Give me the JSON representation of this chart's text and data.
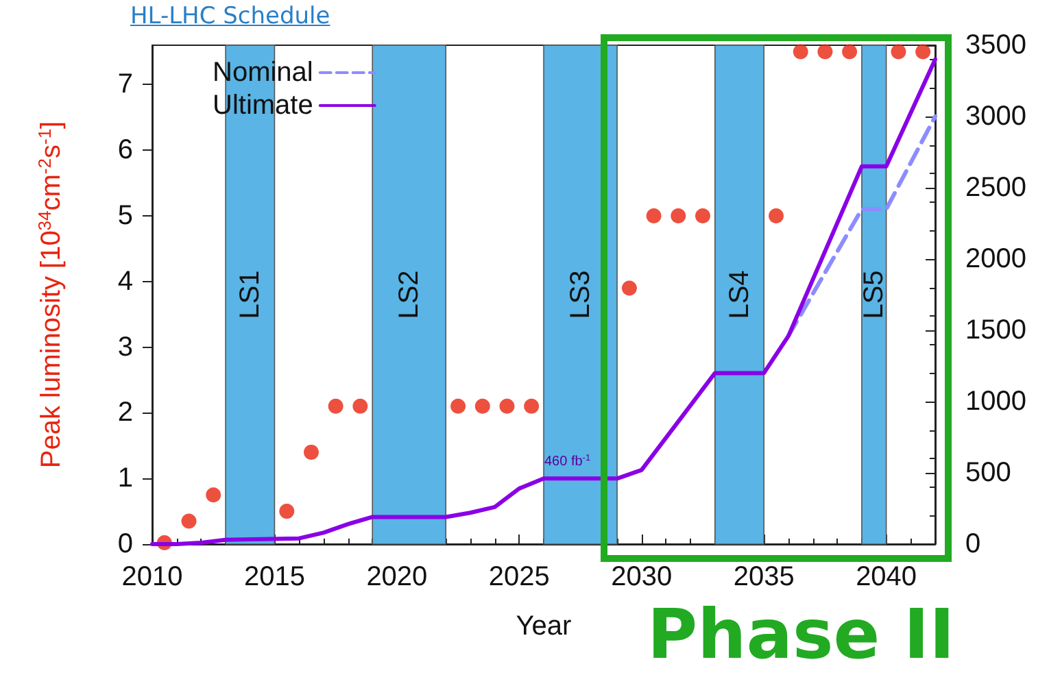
{
  "chart_data": {
    "type": "line",
    "title": "HL-LHC Schedule",
    "xlabel": "Year",
    "ylabel": "Peak luminosity [10$^{34}$cm$^{-2}$s$^{-1}$]",
    "xlim": [
      2010,
      2042
    ],
    "xticks": [
      2010,
      2015,
      2020,
      2025,
      2030,
      2035,
      2040
    ],
    "ylim": [
      0,
      7.6
    ],
    "yticks": [
      0,
      1,
      2,
      3,
      4,
      5,
      6,
      7
    ],
    "y2lim": [
      0,
      3500
    ],
    "y2ticks": [
      0,
      500,
      1000,
      1500,
      2000,
      2500,
      3000,
      3500
    ],
    "grid": false,
    "legend": "top left",
    "series": [
      {
        "type": "scatter",
        "color": "#e8240f",
        "marker": "circle",
        "x": [
          2010.5,
          2011.5,
          2012.5,
          2015.5,
          2016.5,
          2017.5,
          2018.5,
          2022.5,
          2023.5,
          2024.5,
          2025.5,
          2029.5,
          2030.5,
          2031.5,
          2032.5,
          2035.5,
          2036.5,
          2037.5,
          2038.5,
          2040.5,
          2041.5
        ],
        "values": [
          0.02,
          0.35,
          0.75,
          0.5,
          1.4,
          2.1,
          2.1,
          2.1,
          2.1,
          2.1,
          2.1,
          3.9,
          5,
          5,
          5,
          5,
          7.5,
          7.5,
          7.5,
          7.5,
          7.5
        ]
      },
      {
        "name": "Nominal",
        "color": "#8c8cff",
        "line_style": "dashed",
        "axis": "y2",
        "x": [
          2036,
          2039,
          2040,
          2042
        ],
        "values": [
          1460,
          2350,
          2350,
          3000
        ]
      },
      {
        "name": "Ultimate",
        "color": "#8a00e6",
        "line_style": "solid",
        "axis": "y2",
        "x": [
          2010,
          2011,
          2012,
          2013,
          2016,
          2017,
          2018,
          2019,
          2022,
          2023,
          2024,
          2025,
          2026,
          2029,
          2030,
          2033,
          2035,
          2036,
          2039,
          2040,
          2042
        ],
        "values": [
          0,
          0,
          10,
          30,
          40,
          80,
          140,
          190,
          190,
          220,
          260,
          390,
          460,
          460,
          520,
          1200,
          1200,
          1460,
          2650,
          2650,
          3400
        ]
      }
    ],
    "bands": [
      {
        "axis": "x",
        "from": 2013,
        "to": 2015,
        "label": "LS1",
        "color": "#5ab4e5"
      },
      {
        "axis": "x",
        "from": 2019,
        "to": 2022,
        "label": "LS2",
        "color": "#5ab4e5"
      },
      {
        "axis": "x",
        "from": 2026,
        "to": 2029,
        "label": "LS3",
        "color": "#5ab4e5"
      },
      {
        "axis": "x",
        "from": 2033,
        "to": 2035,
        "label": "LS4",
        "color": "#5ab4e5"
      },
      {
        "axis": "x",
        "from": 2039,
        "to": 2040,
        "label": "LS5",
        "color": "#5ab4e5"
      }
    ],
    "annotations": [
      "460 fb$^{-1}$",
      "Phase II"
    ]
  }
}
